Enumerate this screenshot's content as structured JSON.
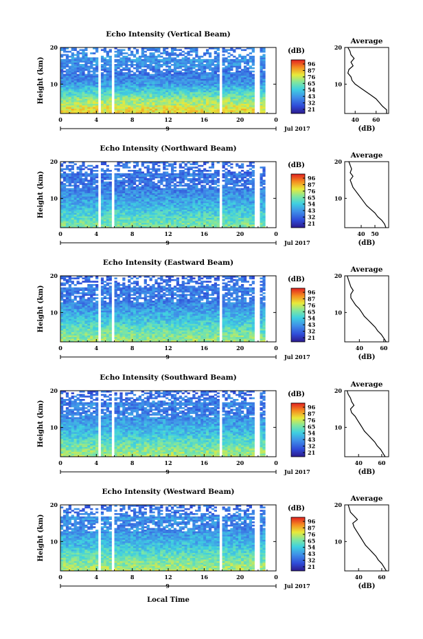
{
  "figure": {
    "xlabel": "Local Time",
    "date_label": "Jul 2017",
    "day_label": "9",
    "colorbar_label": "(dB)",
    "avg_title": "Average",
    "avg_xlabel": "(dB)",
    "ylabel": "Height (km)"
  },
  "chart_data": [
    {
      "type": "heatmap",
      "title": "Echo Intensity (Vertical Beam)",
      "xlabel": "",
      "ylabel": "Height (km)",
      "xlim": [
        0,
        24
      ],
      "x_ticks": [
        "0",
        "4",
        "8",
        "12",
        "16",
        "20",
        "0"
      ],
      "ylim": [
        2,
        20
      ],
      "y_ticks": [
        "10",
        "20"
      ],
      "colorbar_ticks": [
        "96",
        "87",
        "76",
        "65",
        "54",
        "43",
        "32",
        "21"
      ],
      "data_gaps_hours": [
        [
          4.2,
          4.5
        ],
        [
          5.7,
          5.9
        ],
        [
          17.6,
          17.9
        ],
        [
          21.6,
          22.2
        ]
      ],
      "average_profile": {
        "x_ticks": [
          "40",
          "60"
        ],
        "xlim": [
          30,
          72
        ],
        "xlabel": "(dB)",
        "height_km": [
          2,
          3,
          4,
          5,
          6,
          7,
          8,
          9,
          10,
          11,
          12,
          13,
          14,
          15,
          16,
          17,
          18,
          19,
          20
        ],
        "echo_db": [
          70,
          70,
          66,
          63,
          60,
          55,
          50,
          45,
          40,
          37,
          36,
          33,
          34,
          38,
          36,
          39,
          36,
          35,
          33
        ]
      }
    },
    {
      "type": "heatmap",
      "title": "Echo Intensity (Northward Beam)",
      "xlabel": "",
      "ylabel": "Height (km)",
      "xlim": [
        0,
        24
      ],
      "x_ticks": [
        "0",
        "4",
        "8",
        "12",
        "16",
        "20",
        "0"
      ],
      "ylim": [
        2,
        20
      ],
      "y_ticks": [
        "10",
        "20"
      ],
      "colorbar_ticks": [
        "96",
        "87",
        "76",
        "65",
        "54",
        "43",
        "32",
        "21"
      ],
      "data_gaps_hours": [
        [
          4.2,
          4.5
        ],
        [
          5.7,
          5.9
        ],
        [
          17.6,
          17.9
        ],
        [
          21.6,
          22.2
        ]
      ],
      "average_profile": {
        "x_ticks": [
          "40",
          "50"
        ],
        "xlim": [
          28,
          60
        ],
        "xlabel": "(dB)",
        "height_km": [
          2,
          3,
          4,
          5,
          6,
          7,
          8,
          9,
          10,
          11,
          12,
          13,
          14,
          15,
          16,
          17,
          18,
          19,
          20
        ],
        "echo_db": [
          58,
          57,
          55,
          52,
          50,
          47,
          44,
          42,
          40,
          38,
          36,
          34,
          33,
          32,
          34,
          32,
          33,
          32,
          31
        ]
      }
    },
    {
      "type": "heatmap",
      "title": "Echo Intensity (Eastward Beam)",
      "xlabel": "",
      "ylabel": "Height (km)",
      "xlim": [
        0,
        24
      ],
      "x_ticks": [
        "0",
        "4",
        "8",
        "12",
        "16",
        "20",
        "0"
      ],
      "ylim": [
        2,
        20
      ],
      "y_ticks": [
        "10",
        "20"
      ],
      "colorbar_ticks": [
        "96",
        "87",
        "76",
        "65",
        "54",
        "43",
        "32",
        "21"
      ],
      "data_gaps_hours": [
        [
          4.2,
          4.5
        ],
        [
          5.7,
          5.9
        ],
        [
          17.6,
          17.9
        ],
        [
          21.6,
          22.2
        ]
      ],
      "average_profile": {
        "x_ticks": [
          "40",
          "60"
        ],
        "xlim": [
          28,
          64
        ],
        "xlabel": "(dB)",
        "height_km": [
          2,
          3,
          4,
          5,
          6,
          7,
          8,
          9,
          10,
          11,
          12,
          13,
          14,
          15,
          16,
          17,
          18,
          19,
          20
        ],
        "echo_db": [
          62,
          60,
          58,
          55,
          53,
          50,
          47,
          44,
          42,
          40,
          37,
          35,
          33,
          33,
          35,
          33,
          32,
          31,
          30
        ]
      }
    },
    {
      "type": "heatmap",
      "title": "Echo Intensity (Southward Beam)",
      "xlabel": "",
      "ylabel": "Height (km)",
      "xlim": [
        0,
        24
      ],
      "x_ticks": [
        "0",
        "4",
        "8",
        "12",
        "16",
        "20",
        "0"
      ],
      "ylim": [
        2,
        20
      ],
      "y_ticks": [
        "10",
        "20"
      ],
      "colorbar_ticks": [
        "96",
        "87",
        "76",
        "65",
        "54",
        "43",
        "32",
        "21"
      ],
      "data_gaps_hours": [
        [
          4.2,
          4.5
        ],
        [
          5.7,
          5.9
        ],
        [
          17.6,
          17.9
        ],
        [
          21.6,
          22.2
        ]
      ],
      "average_profile": {
        "x_ticks": [
          "40",
          "60"
        ],
        "xlim": [
          28,
          66
        ],
        "xlabel": "(dB)",
        "height_km": [
          2,
          3,
          4,
          5,
          6,
          7,
          8,
          9,
          10,
          11,
          12,
          13,
          14,
          15,
          16,
          17,
          18,
          19,
          20
        ],
        "echo_db": [
          63,
          61,
          59,
          56,
          54,
          51,
          48,
          45,
          43,
          41,
          39,
          37,
          34,
          33,
          36,
          34,
          33,
          31,
          30
        ]
      }
    },
    {
      "type": "heatmap",
      "title": "Echo Intensity (Westward Beam)",
      "xlabel": "Local Time",
      "ylabel": "Height (km)",
      "xlim": [
        0,
        24
      ],
      "x_ticks": [
        "0",
        "4",
        "8",
        "12",
        "16",
        "20",
        "0"
      ],
      "ylim": [
        2,
        20
      ],
      "y_ticks": [
        "10",
        "20"
      ],
      "colorbar_ticks": [
        "96",
        "87",
        "76",
        "65",
        "54",
        "43",
        "32",
        "21"
      ],
      "data_gaps_hours": [
        [
          4.2,
          4.5
        ],
        [
          5.7,
          5.9
        ],
        [
          17.6,
          17.9
        ],
        [
          21.6,
          22.2
        ]
      ],
      "average_profile": {
        "x_ticks": [
          "40",
          "60"
        ],
        "xlim": [
          28,
          66
        ],
        "xlabel": "(dB)",
        "height_km": [
          2,
          3,
          4,
          5,
          6,
          7,
          8,
          9,
          10,
          11,
          12,
          13,
          14,
          15,
          16,
          17,
          18,
          19,
          20
        ],
        "echo_db": [
          64,
          62,
          60,
          57,
          55,
          52,
          49,
          46,
          44,
          42,
          40,
          38,
          36,
          35,
          39,
          36,
          33,
          32,
          31
        ]
      }
    }
  ]
}
